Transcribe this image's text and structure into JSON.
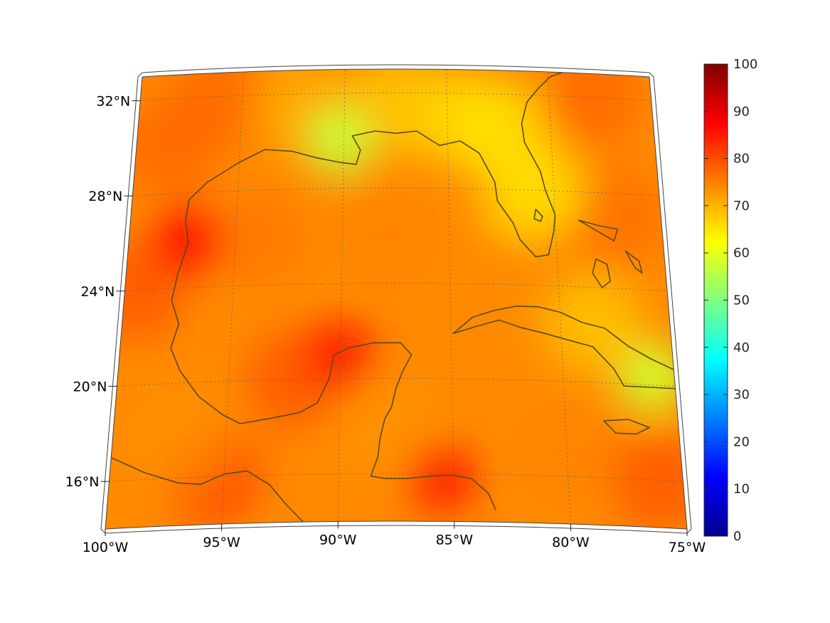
{
  "map": {
    "projection": "conic",
    "region": "Gulf of Mexico and Caribbean",
    "lon_range": [
      -100,
      -75
    ],
    "lat_range": [
      14,
      33
    ],
    "coastline_color": "#5a4a1e",
    "graticule": "dotted",
    "lat_labels": [
      {
        "lat": 32,
        "text": "32°N"
      },
      {
        "lat": 28,
        "text": "28°N"
      },
      {
        "lat": 24,
        "text": "24°N"
      },
      {
        "lat": 20,
        "text": "20°N"
      },
      {
        "lat": 16,
        "text": "16°N"
      }
    ],
    "lon_labels": [
      {
        "lon": -100,
        "text": "100°W"
      },
      {
        "lon": -95,
        "text": "95°W"
      },
      {
        "lon": -90,
        "text": "90°W"
      },
      {
        "lon": -85,
        "text": "85°W"
      },
      {
        "lon": -80,
        "text": "80°W"
      },
      {
        "lon": -75,
        "text": "75°W"
      }
    ]
  },
  "colorbar": {
    "colormap": "jet",
    "min": 0,
    "max": 100,
    "ticks": [
      "0",
      "10",
      "20",
      "30",
      "40",
      "50",
      "60",
      "70",
      "80",
      "90",
      "100"
    ]
  },
  "field": {
    "background_value": 74,
    "features": [
      {
        "name": "Texas coast high",
        "lon": -97.2,
        "lat": 26.0,
        "value": 86
      },
      {
        "name": "Campeche Bank high",
        "lon": -90.0,
        "lat": 21.0,
        "value": 85
      },
      {
        "name": "Mississippi delta low",
        "lon": -90.2,
        "lat": 30.0,
        "value": 57
      },
      {
        "name": "Florida peninsula",
        "lon": -81.7,
        "lat": 29.0,
        "value": 66
      },
      {
        "name": "Eastern Cuba / Hispaniola low",
        "lon": -76.0,
        "lat": 20.3,
        "value": 58
      },
      {
        "name": "Honduras coast",
        "lon": -85.5,
        "lat": 15.8,
        "value": 84
      }
    ]
  }
}
